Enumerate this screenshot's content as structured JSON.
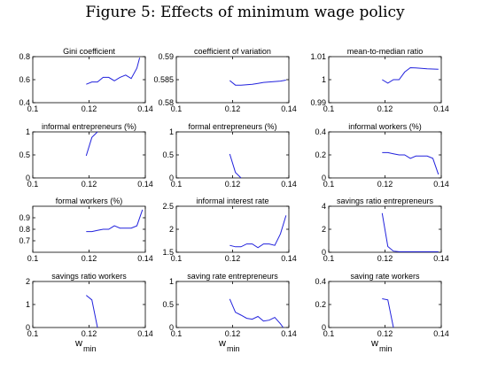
{
  "figure": {
    "title": "Figure 5: Effects of minimum wage policy",
    "xlabel_main": "w",
    "xlabel_sub": "min"
  },
  "style": {
    "line_color": "#2222dd",
    "axis_color": "#000000"
  },
  "chart_data": [
    {
      "type": "line",
      "title": "Gini coefficient",
      "xlim": [
        0.1,
        0.14
      ],
      "xticks": [
        "0.1",
        "0.12",
        "0.14"
      ],
      "ylim": [
        0.4,
        0.8
      ],
      "yticks": [
        0.4,
        0.6,
        0.8
      ],
      "ytick_labels": [
        "0.4",
        "0.6",
        "0.8"
      ],
      "x": [
        0.119,
        0.121,
        0.123,
        0.125,
        0.127,
        0.129,
        0.131,
        0.133,
        0.135,
        0.137,
        0.138
      ],
      "y": [
        0.56,
        0.58,
        0.58,
        0.62,
        0.62,
        0.59,
        0.62,
        0.64,
        0.61,
        0.7,
        0.79
      ]
    },
    {
      "type": "line",
      "title": "coefficient of variation",
      "xlim": [
        0.1,
        0.14
      ],
      "xticks": [
        "0.1",
        "0.12",
        "0.14"
      ],
      "ylim": [
        0.58,
        0.59
      ],
      "yticks": [
        0.58,
        0.585,
        0.59
      ],
      "ytick_labels": [
        "0.58",
        "0.585",
        "0.59"
      ],
      "x": [
        0.119,
        0.121,
        0.123,
        0.125,
        0.127,
        0.129,
        0.131,
        0.133,
        0.135,
        0.137,
        0.139
      ],
      "y": [
        0.5848,
        0.5838,
        0.5838,
        0.5839,
        0.584,
        0.5842,
        0.5844,
        0.5845,
        0.5846,
        0.5847,
        0.5849
      ]
    },
    {
      "type": "line",
      "title": "mean-to-median ratio",
      "xlim": [
        0.1,
        0.14
      ],
      "xticks": [
        "0.1",
        "0.12",
        "0.14"
      ],
      "ylim": [
        0.99,
        1.01
      ],
      "yticks": [
        0.99,
        1.0,
        1.01
      ],
      "ytick_labels": [
        "0.99",
        "1",
        "1.01"
      ],
      "x": [
        0.119,
        0.121,
        0.123,
        0.125,
        0.127,
        0.129,
        0.131,
        0.133,
        0.135,
        0.137,
        0.139
      ],
      "y": [
        1.0,
        0.9985,
        1.0,
        1.0,
        1.0033,
        1.0052,
        1.0051,
        1.0049,
        1.0047,
        1.0046,
        1.0045
      ]
    },
    {
      "type": "line",
      "title": "informal entrepreneurs (%)",
      "xlim": [
        0.1,
        0.14
      ],
      "xticks": [
        "0.1",
        "0.12",
        "0.14"
      ],
      "ylim": [
        0,
        1
      ],
      "yticks": [
        0,
        0.5,
        1
      ],
      "ytick_labels": [
        "0",
        "0.5",
        "1"
      ],
      "x": [
        0.119,
        0.121,
        0.123
      ],
      "y": [
        0.48,
        0.88,
        1.0
      ]
    },
    {
      "type": "line",
      "title": "formal entrepreneurs (%)",
      "xlim": [
        0.1,
        0.14
      ],
      "xticks": [
        "0.1",
        "0.12",
        "0.14"
      ],
      "ylim": [
        0,
        1
      ],
      "yticks": [
        0,
        0.5,
        1
      ],
      "ytick_labels": [
        "0",
        "0.5",
        "1"
      ],
      "x": [
        0.119,
        0.121,
        0.123
      ],
      "y": [
        0.52,
        0.12,
        0.0
      ]
    },
    {
      "type": "line",
      "title": "informal workers (%)",
      "xlim": [
        0.1,
        0.14
      ],
      "xticks": [
        "0.1",
        "0.12",
        "0.14"
      ],
      "ylim": [
        0,
        0.4
      ],
      "yticks": [
        0,
        0.2,
        0.4
      ],
      "ytick_labels": [
        "0",
        "0.2",
        "0.4"
      ],
      "x": [
        0.119,
        0.121,
        0.123,
        0.125,
        0.127,
        0.129,
        0.131,
        0.133,
        0.135,
        0.137,
        0.139
      ],
      "y": [
        0.22,
        0.22,
        0.21,
        0.2,
        0.2,
        0.17,
        0.19,
        0.19,
        0.19,
        0.17,
        0.03
      ]
    },
    {
      "type": "line",
      "title": "formal workers (%)",
      "xlim": [
        0.1,
        0.14
      ],
      "xticks": [
        "0.1",
        "0.12",
        "0.14"
      ],
      "ylim": [
        0.6,
        1.0
      ],
      "yticks": [
        0.7,
        0.8,
        0.9
      ],
      "ytick_labels": [
        "0.7",
        "0.8",
        "0.9"
      ],
      "x": [
        0.119,
        0.121,
        0.123,
        0.125,
        0.127,
        0.129,
        0.131,
        0.133,
        0.135,
        0.137,
        0.139
      ],
      "y": [
        0.78,
        0.78,
        0.79,
        0.8,
        0.8,
        0.83,
        0.81,
        0.81,
        0.81,
        0.83,
        0.97
      ]
    },
    {
      "type": "line",
      "title": "informal interest rate",
      "xlim": [
        0.1,
        0.14
      ],
      "xticks": [
        "0.1",
        "0.12",
        "0.14"
      ],
      "ylim": [
        1.5,
        2.5
      ],
      "yticks": [
        1.5,
        2,
        2.5
      ],
      "ytick_labels": [
        "1.5",
        "2",
        "2.5"
      ],
      "x": [
        0.119,
        0.121,
        0.123,
        0.125,
        0.127,
        0.129,
        0.131,
        0.133,
        0.135,
        0.137,
        0.139
      ],
      "y": [
        1.65,
        1.62,
        1.62,
        1.68,
        1.68,
        1.6,
        1.68,
        1.68,
        1.65,
        1.9,
        2.3
      ]
    },
    {
      "type": "line",
      "title": "savings ratio entrepreneurs",
      "xlim": [
        0.1,
        0.14
      ],
      "xticks": [
        "0.1",
        "0.12",
        "0.14"
      ],
      "ylim": [
        0,
        4
      ],
      "yticks": [
        0,
        2,
        4
      ],
      "ytick_labels": [
        "0",
        "2",
        "4"
      ],
      "x": [
        0.119,
        0.121,
        0.123,
        0.125,
        0.127,
        0.129,
        0.131,
        0.133,
        0.135,
        0.137,
        0.139
      ],
      "y": [
        3.4,
        0.5,
        0.1,
        0.05,
        0.05,
        0.05,
        0.05,
        0.05,
        0.05,
        0.05,
        0.05
      ]
    },
    {
      "type": "line",
      "title": "savings ratio workers",
      "xlim": [
        0.1,
        0.14
      ],
      "xticks": [
        "0.1",
        "0.12",
        "0.14"
      ],
      "ylim": [
        0,
        2
      ],
      "yticks": [
        0,
        1,
        2
      ],
      "ytick_labels": [
        "0",
        "1",
        "2"
      ],
      "x": [
        0.119,
        0.121,
        0.123
      ],
      "y": [
        1.4,
        1.2,
        0.0
      ]
    },
    {
      "type": "line",
      "title": "saving rate entrepreneurs",
      "xlim": [
        0.1,
        0.14
      ],
      "xticks": [
        "0.1",
        "0.12",
        "0.14"
      ],
      "ylim": [
        0,
        1
      ],
      "yticks": [
        0,
        0.5,
        1
      ],
      "ytick_labels": [
        "0",
        "0.5",
        "1"
      ],
      "x": [
        0.119,
        0.121,
        0.123,
        0.125,
        0.127,
        0.129,
        0.131,
        0.133,
        0.135,
        0.137,
        0.138
      ],
      "y": [
        0.62,
        0.33,
        0.27,
        0.2,
        0.18,
        0.24,
        0.14,
        0.16,
        0.22,
        0.08,
        0.0
      ]
    },
    {
      "type": "line",
      "title": "saving rate workers",
      "xlim": [
        0.1,
        0.14
      ],
      "xticks": [
        "0.1",
        "0.12",
        "0.14"
      ],
      "ylim": [
        0,
        0.4
      ],
      "yticks": [
        0,
        0.2,
        0.4
      ],
      "ytick_labels": [
        "0",
        "0.2",
        "0.4"
      ],
      "x": [
        0.119,
        0.121,
        0.123
      ],
      "y": [
        0.25,
        0.24,
        0.0
      ]
    }
  ]
}
